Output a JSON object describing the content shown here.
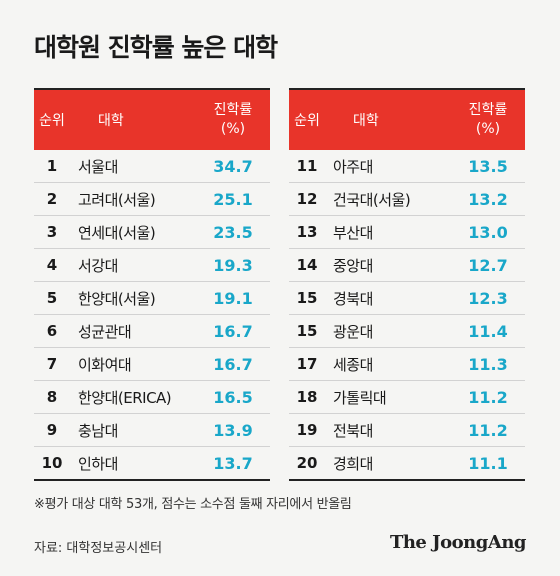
{
  "title": "대학원 진학률 높은 대학",
  "headers": {
    "rank": "순위",
    "name": "대학",
    "rate_line1": "진학률",
    "rate_line2": "(%)"
  },
  "chart_data": {
    "type": "table",
    "columns": [
      "순위",
      "대학",
      "진학률 (%)"
    ],
    "rows": [
      {
        "rank": "1",
        "name": "서울대",
        "rate": "34.7"
      },
      {
        "rank": "2",
        "name": "고려대(서울)",
        "rate": "25.1"
      },
      {
        "rank": "3",
        "name": "연세대(서울)",
        "rate": "23.5"
      },
      {
        "rank": "4",
        "name": "서강대",
        "rate": "19.3"
      },
      {
        "rank": "5",
        "name": "한양대(서울)",
        "rate": "19.1"
      },
      {
        "rank": "6",
        "name": "성균관대",
        "rate": "16.7"
      },
      {
        "rank": "7",
        "name": "이화여대",
        "rate": "16.7"
      },
      {
        "rank": "8",
        "name": "한양대(ERICA)",
        "rate": "16.5"
      },
      {
        "rank": "9",
        "name": "충남대",
        "rate": "13.9"
      },
      {
        "rank": "10",
        "name": "인하대",
        "rate": "13.7"
      },
      {
        "rank": "11",
        "name": "아주대",
        "rate": "13.5"
      },
      {
        "rank": "12",
        "name": "건국대(서울)",
        "rate": "13.2"
      },
      {
        "rank": "13",
        "name": "부산대",
        "rate": "13.0"
      },
      {
        "rank": "14",
        "name": "중앙대",
        "rate": "12.7"
      },
      {
        "rank": "15",
        "name": "경북대",
        "rate": "12.3"
      },
      {
        "rank": "15",
        "name": "광운대",
        "rate": "11.4"
      },
      {
        "rank": "17",
        "name": "세종대",
        "rate": "11.3"
      },
      {
        "rank": "18",
        "name": "가톨릭대",
        "rate": "11.2"
      },
      {
        "rank": "19",
        "name": "전북대",
        "rate": "11.2"
      },
      {
        "rank": "20",
        "name": "경희대",
        "rate": "11.1"
      }
    ]
  },
  "note": "※평가 대상 대학 53개, 점수는 소수점 둘째 자리에서 반올림",
  "source": "자료: 대학정보공시센터",
  "logo": "The JoongAng",
  "colors": {
    "header_bg": "#e8342a",
    "rate_text": "#19a7c9",
    "background": "#f5f5f3"
  }
}
